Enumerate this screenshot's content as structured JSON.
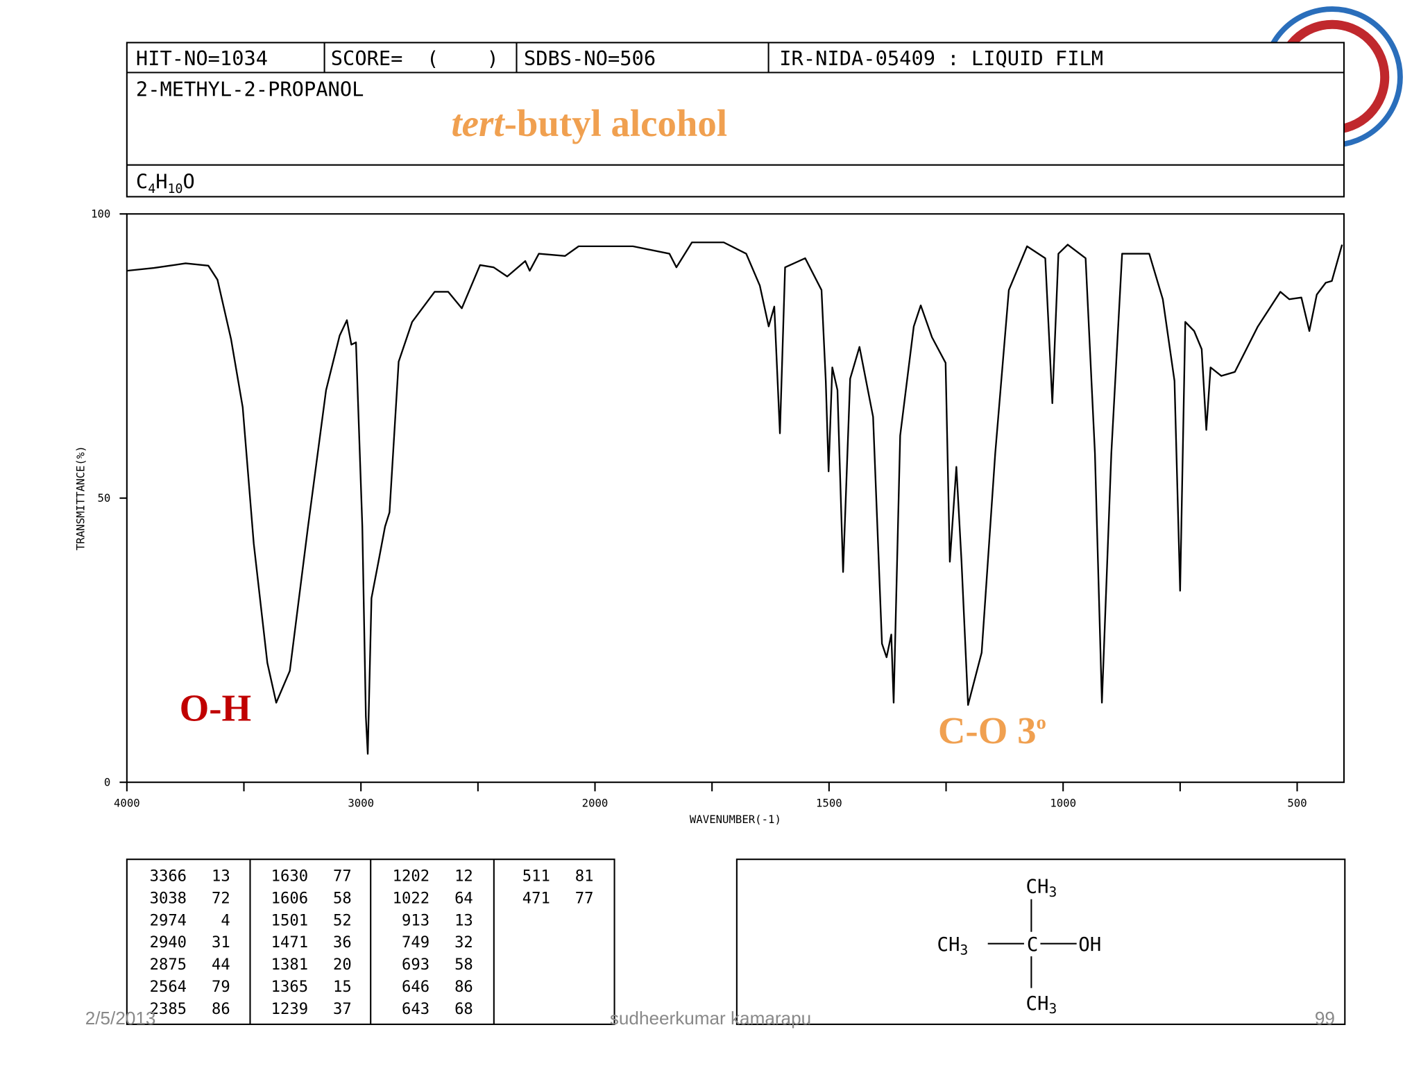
{
  "header": {
    "hit_no": "HIT-NO=1034",
    "score": "SCORE=  (    )",
    "sdbs_no": "SDBS-NO=506",
    "method": "IR-NIDA-05409 : LIQUID FILM",
    "name": "2-METHYL-2-PROPANOL",
    "formula": [
      "C",
      "4",
      "H",
      "10",
      "O"
    ]
  },
  "title": [
    "tert",
    "-butyl alcohol"
  ],
  "annotations": {
    "oh": "O-H",
    "co": [
      "C-O 3",
      "o"
    ]
  },
  "chart_data": {
    "type": "line",
    "ylabel": "TRANSMITTANCE(%)",
    "xlabel": "WAVENUMBER(-1)",
    "xlim": [
      4000,
      400
    ],
    "xticks": [
      4000,
      3000,
      2000,
      1500,
      1000,
      500
    ],
    "xminor": [
      3500,
      2500,
      1750,
      1250,
      750
    ],
    "ylim": [
      0,
      100
    ],
    "yticks": [
      0,
      50,
      100
    ],
    "color": "#000000",
    "x": [
      4000,
      3884,
      3749,
      3652,
      3613,
      3555,
      3505,
      3458,
      3400,
      3362,
      3304,
      3226,
      3149,
      3091,
      3060,
      3041,
      3021,
      2994,
      2979,
      2971,
      2955,
      2925,
      2897,
      2878,
      2839,
      2781,
      2685,
      2627,
      2569,
      2491,
      2433,
      2375,
      2298,
      2279,
      2240,
      2128,
      2070,
      1919,
      1841,
      1826,
      1793,
      1725,
      1677,
      1648,
      1629,
      1617,
      1605,
      1594,
      1551,
      1516,
      1507,
      1501,
      1493,
      1482,
      1470,
      1455,
      1435,
      1406,
      1387,
      1377,
      1367,
      1362,
      1348,
      1319,
      1304,
      1280,
      1251,
      1242,
      1228,
      1217,
      1203,
      1174,
      1145,
      1116,
      1077,
      1038,
      1023,
      1010,
      990,
      952,
      932,
      917,
      897,
      874,
      816,
      787,
      762,
      750,
      739,
      720,
      704,
      694,
      685,
      662,
      633,
      584,
      536,
      517,
      491,
      474,
      458,
      439,
      426,
      404
    ],
    "values": [
      90,
      90.5,
      91.3,
      90.9,
      88.4,
      78,
      66,
      42,
      21,
      14,
      19.6,
      45,
      69,
      78.6,
      81.3,
      77,
      77.4,
      45,
      11.6,
      5,
      32.4,
      38.8,
      45,
      47.5,
      74,
      81,
      86.3,
      86.3,
      83.4,
      91,
      90.6,
      89,
      91.7,
      90,
      93,
      92.6,
      94.3,
      94.3,
      93,
      90.6,
      95,
      95,
      93,
      87.4,
      80.2,
      83.7,
      61.4,
      90.6,
      92.2,
      86.6,
      70.6,
      54.7,
      73,
      69,
      37,
      71,
      76.6,
      64.3,
      24.4,
      22,
      26,
      14,
      61,
      80.2,
      83.9,
      78.3,
      73.8,
      38.8,
      55.5,
      38.8,
      13.6,
      22.8,
      57.9,
      86.6,
      94.3,
      92.2,
      66.7,
      93,
      94.6,
      92.2,
      57.9,
      14,
      57.9,
      93,
      93,
      85,
      70.6,
      33.7,
      81,
      79.4,
      76.2,
      62,
      73,
      71.5,
      72.2,
      80.2,
      86.3,
      85,
      85.3,
      79.4,
      85.8,
      87.9,
      88.2,
      94.6
    ]
  },
  "peak_table": [
    [
      [
        3366,
        13
      ],
      [
        3038,
        72
      ],
      [
        2974,
        4
      ],
      [
        2940,
        31
      ],
      [
        2875,
        44
      ],
      [
        2564,
        79
      ],
      [
        2385,
        86
      ]
    ],
    [
      [
        1630,
        77
      ],
      [
        1606,
        58
      ],
      [
        1501,
        52
      ],
      [
        1471,
        36
      ],
      [
        1381,
        20
      ],
      [
        1365,
        15
      ],
      [
        1239,
        37
      ]
    ],
    [
      [
        1202,
        12
      ],
      [
        1022,
        64
      ],
      [
        913,
        13
      ],
      [
        749,
        32
      ],
      [
        693,
        58
      ],
      [
        646,
        86
      ],
      [
        643,
        68
      ]
    ],
    [
      [
        511,
        81
      ],
      [
        471,
        77
      ]
    ]
  ],
  "structure": {
    "top": [
      "CH",
      "3"
    ],
    "left": [
      "CH",
      "3"
    ],
    "center": "C",
    "right": "OH",
    "bottom": [
      "CH",
      "3"
    ]
  },
  "footer": {
    "date": "2/5/2013",
    "author": "sudheerkumar kamarapu",
    "page": "99"
  }
}
